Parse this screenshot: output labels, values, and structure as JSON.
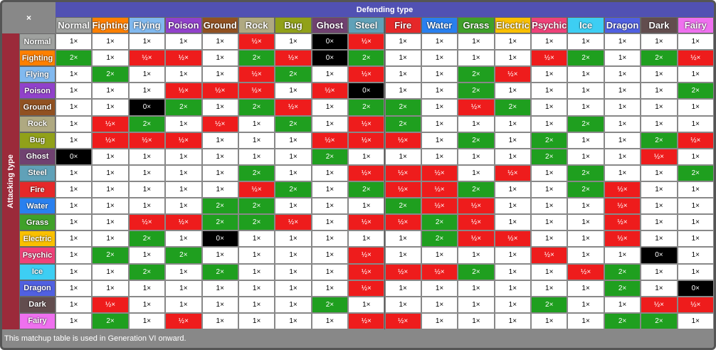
{
  "corner": "×",
  "defending_label": "Defending type",
  "attacking_label": "Attacking type",
  "types": [
    {
      "name": "Normal",
      "color": "#9fa19f"
    },
    {
      "name": "Fighting",
      "color": "#ff8000"
    },
    {
      "name": "Flying",
      "color": "#81b9ef"
    },
    {
      "name": "Poison",
      "color": "#9141cb"
    },
    {
      "name": "Ground",
      "color": "#915121"
    },
    {
      "name": "Rock",
      "color": "#afa981"
    },
    {
      "name": "Bug",
      "color": "#91a119"
    },
    {
      "name": "Ghost",
      "color": "#704170"
    },
    {
      "name": "Steel",
      "color": "#60a1b8"
    },
    {
      "name": "Fire",
      "color": "#e62829"
    },
    {
      "name": "Water",
      "color": "#2980ef"
    },
    {
      "name": "Grass",
      "color": "#3fa129"
    },
    {
      "name": "Electric",
      "color": "#fac000"
    },
    {
      "name": "Psychic",
      "color": "#ef4179"
    },
    {
      "name": "Ice",
      "color": "#3dcef3"
    },
    {
      "name": "Dragon",
      "color": "#5060e1"
    },
    {
      "name": "Dark",
      "color": "#624d4e"
    },
    {
      "name": "Fairy",
      "color": "#ef70ef"
    }
  ],
  "matrix": [
    [
      "1×",
      "1×",
      "1×",
      "1×",
      "1×",
      "½×",
      "1×",
      "0×",
      "½×",
      "1×",
      "1×",
      "1×",
      "1×",
      "1×",
      "1×",
      "1×",
      "1×",
      "1×"
    ],
    [
      "2×",
      "1×",
      "½×",
      "½×",
      "1×",
      "2×",
      "½×",
      "0×",
      "2×",
      "1×",
      "1×",
      "1×",
      "1×",
      "½×",
      "2×",
      "1×",
      "2×",
      "½×"
    ],
    [
      "1×",
      "2×",
      "1×",
      "1×",
      "1×",
      "½×",
      "2×",
      "1×",
      "½×",
      "1×",
      "1×",
      "2×",
      "½×",
      "1×",
      "1×",
      "1×",
      "1×",
      "1×"
    ],
    [
      "1×",
      "1×",
      "1×",
      "½×",
      "½×",
      "½×",
      "1×",
      "½×",
      "0×",
      "1×",
      "1×",
      "2×",
      "1×",
      "1×",
      "1×",
      "1×",
      "1×",
      "2×"
    ],
    [
      "1×",
      "1×",
      "0×",
      "2×",
      "1×",
      "2×",
      "½×",
      "1×",
      "2×",
      "2×",
      "1×",
      "½×",
      "2×",
      "1×",
      "1×",
      "1×",
      "1×",
      "1×"
    ],
    [
      "1×",
      "½×",
      "2×",
      "1×",
      "½×",
      "1×",
      "2×",
      "1×",
      "½×",
      "2×",
      "1×",
      "1×",
      "1×",
      "1×",
      "2×",
      "1×",
      "1×",
      "1×"
    ],
    [
      "1×",
      "½×",
      "½×",
      "½×",
      "1×",
      "1×",
      "1×",
      "½×",
      "½×",
      "½×",
      "1×",
      "2×",
      "1×",
      "2×",
      "1×",
      "1×",
      "2×",
      "½×"
    ],
    [
      "0×",
      "1×",
      "1×",
      "1×",
      "1×",
      "1×",
      "1×",
      "2×",
      "1×",
      "1×",
      "1×",
      "1×",
      "1×",
      "2×",
      "1×",
      "1×",
      "½×",
      "1×"
    ],
    [
      "1×",
      "1×",
      "1×",
      "1×",
      "1×",
      "2×",
      "1×",
      "1×",
      "½×",
      "½×",
      "½×",
      "1×",
      "½×",
      "1×",
      "2×",
      "1×",
      "1×",
      "2×"
    ],
    [
      "1×",
      "1×",
      "1×",
      "1×",
      "1×",
      "½×",
      "2×",
      "1×",
      "2×",
      "½×",
      "½×",
      "2×",
      "1×",
      "1×",
      "2×",
      "½×",
      "1×",
      "1×"
    ],
    [
      "1×",
      "1×",
      "1×",
      "1×",
      "2×",
      "2×",
      "1×",
      "1×",
      "1×",
      "2×",
      "½×",
      "½×",
      "1×",
      "1×",
      "1×",
      "½×",
      "1×",
      "1×"
    ],
    [
      "1×",
      "1×",
      "½×",
      "½×",
      "2×",
      "2×",
      "½×",
      "1×",
      "½×",
      "½×",
      "2×",
      "½×",
      "1×",
      "1×",
      "1×",
      "½×",
      "1×",
      "1×"
    ],
    [
      "1×",
      "1×",
      "2×",
      "1×",
      "0×",
      "1×",
      "1×",
      "1×",
      "1×",
      "1×",
      "2×",
      "½×",
      "½×",
      "1×",
      "1×",
      "½×",
      "1×",
      "1×"
    ],
    [
      "1×",
      "2×",
      "1×",
      "2×",
      "1×",
      "1×",
      "1×",
      "1×",
      "½×",
      "1×",
      "1×",
      "1×",
      "1×",
      "½×",
      "1×",
      "1×",
      "0×",
      "1×"
    ],
    [
      "1×",
      "1×",
      "2×",
      "1×",
      "2×",
      "1×",
      "1×",
      "1×",
      "½×",
      "½×",
      "½×",
      "2×",
      "1×",
      "1×",
      "½×",
      "2×",
      "1×",
      "1×"
    ],
    [
      "1×",
      "1×",
      "1×",
      "1×",
      "1×",
      "1×",
      "1×",
      "1×",
      "½×",
      "1×",
      "1×",
      "1×",
      "1×",
      "1×",
      "1×",
      "2×",
      "1×",
      "0×"
    ],
    [
      "1×",
      "½×",
      "1×",
      "1×",
      "1×",
      "1×",
      "1×",
      "2×",
      "1×",
      "1×",
      "1×",
      "1×",
      "1×",
      "2×",
      "1×",
      "1×",
      "½×",
      "½×"
    ],
    [
      "1×",
      "2×",
      "1×",
      "½×",
      "1×",
      "1×",
      "1×",
      "1×",
      "½×",
      "½×",
      "1×",
      "1×",
      "1×",
      "1×",
      "1×",
      "2×",
      "2×",
      "1×"
    ]
  ],
  "effect_colors": {
    "1×": {
      "bg": "#ffffff",
      "fg": "#000000"
    },
    "2×": {
      "bg": "#1f9f1f",
      "fg": "#ffffff"
    },
    "½×": {
      "bg": "#ee1c1c",
      "fg": "#ffffff"
    },
    "0×": {
      "bg": "#000000",
      "fg": "#ffffff"
    }
  },
  "footer": "This matchup table is used in Generation VI onward."
}
